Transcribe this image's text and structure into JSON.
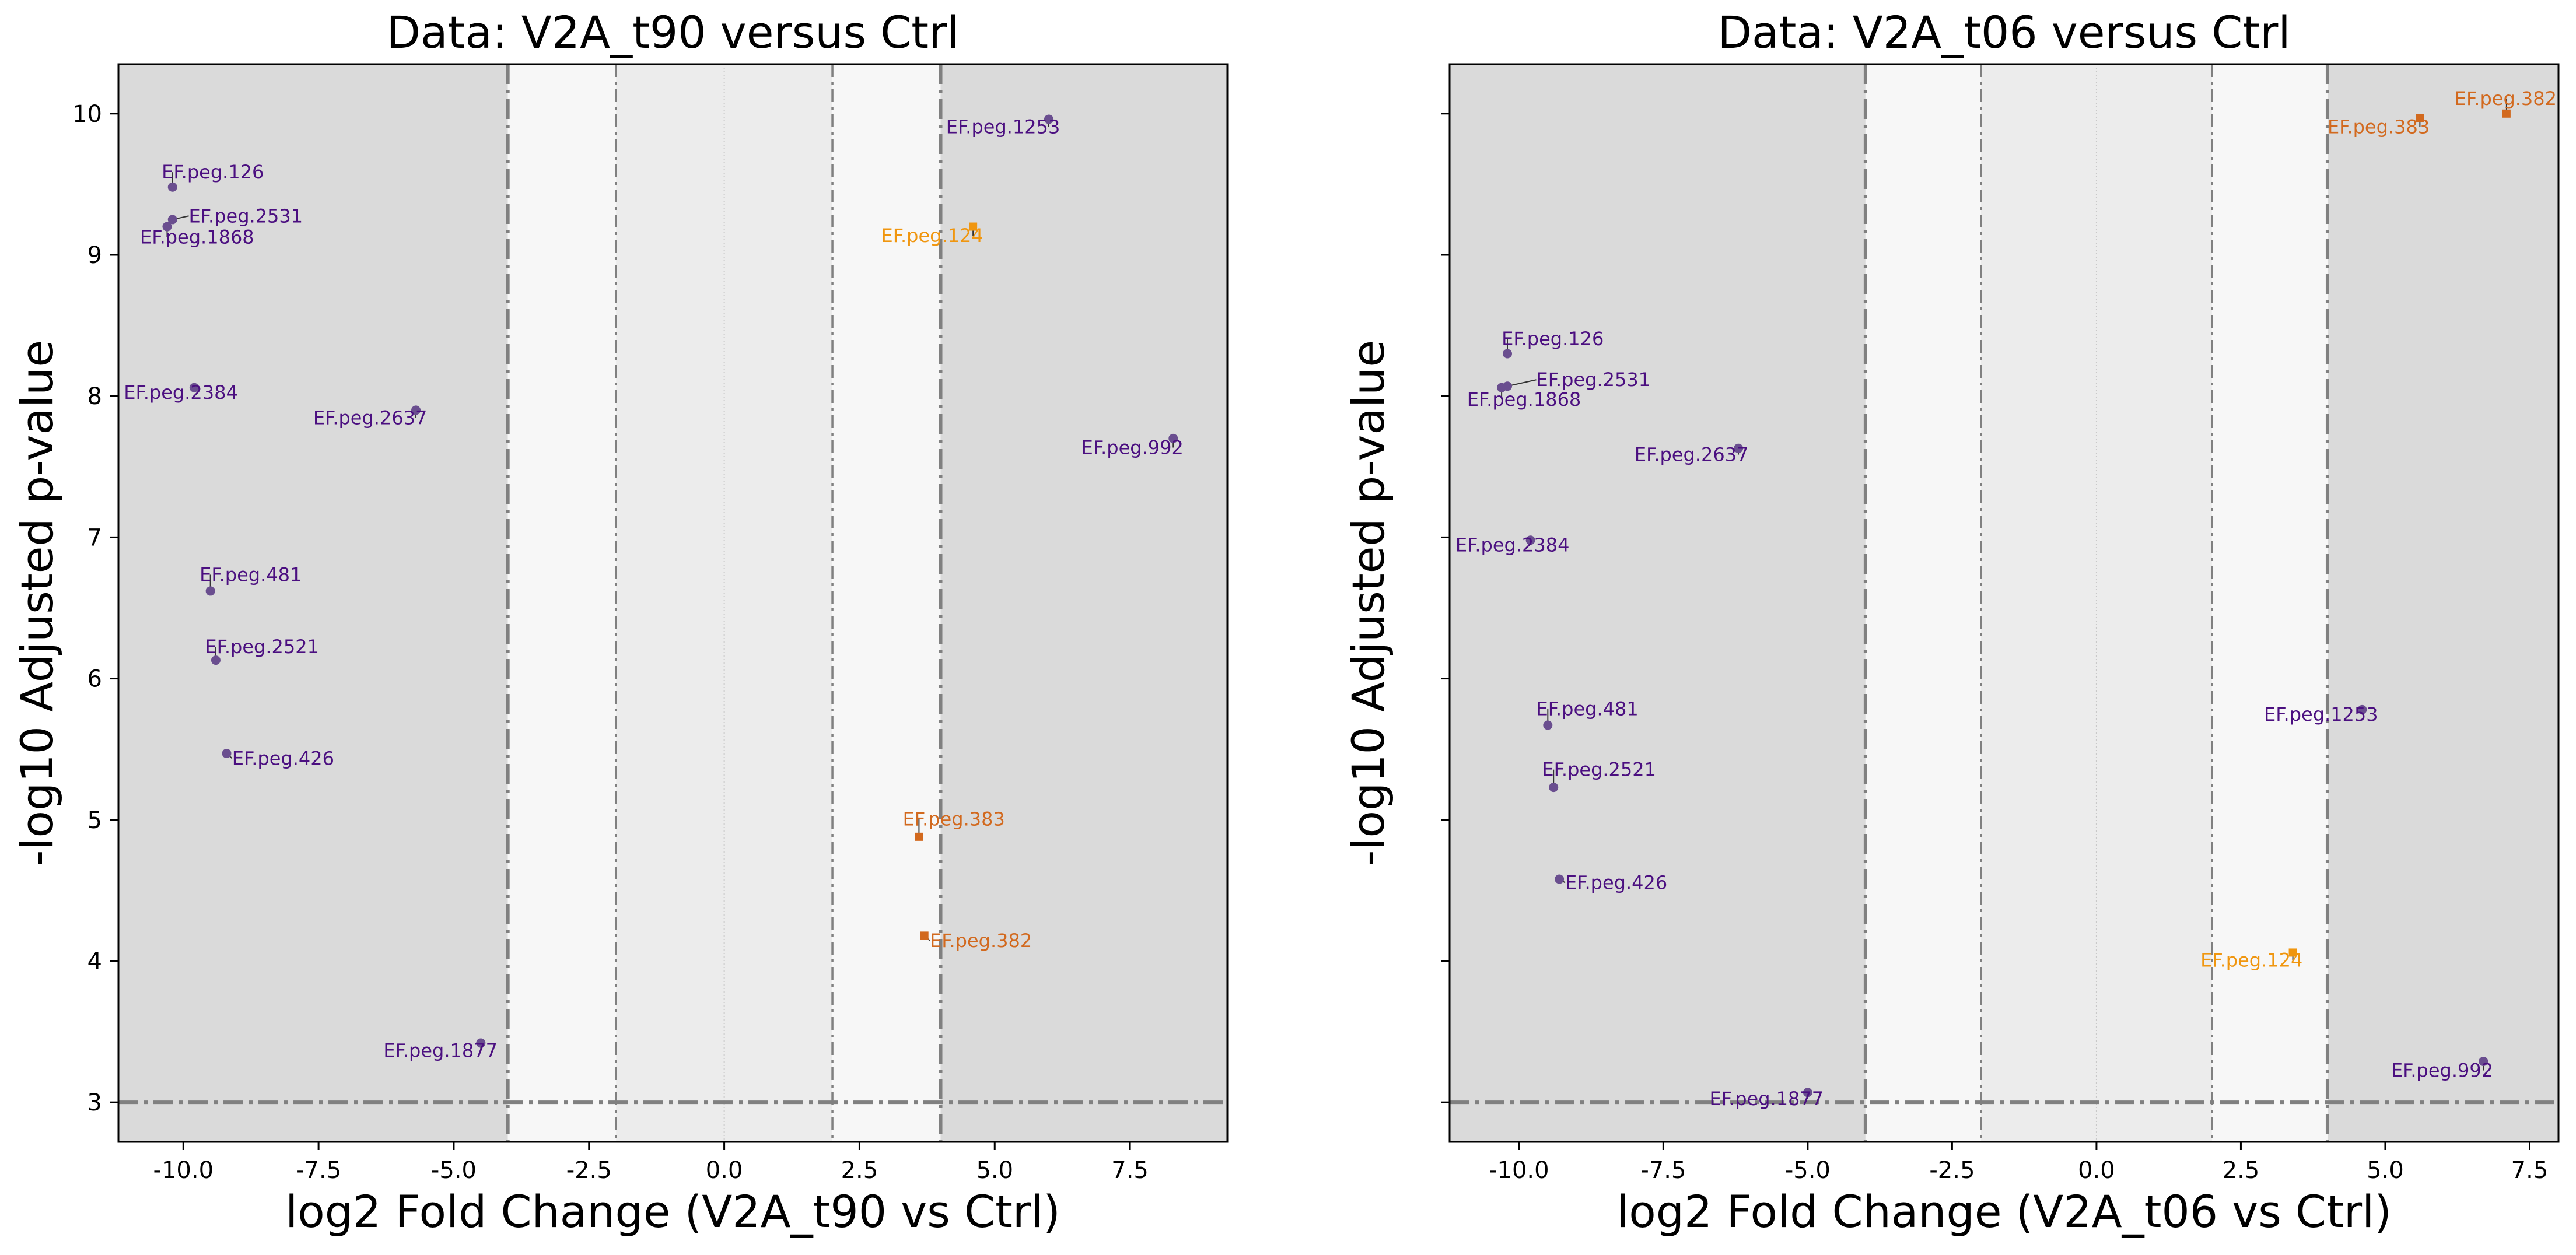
{
  "colors": {
    "purple": "#4b0f80",
    "purple_marker": "#6a4e8f",
    "orange_dark": "#d2691e",
    "orange_light": "#f0960f",
    "band_outer": "#dadada",
    "band_mid": "#f7f7f7",
    "band_inner": "#ececec",
    "line_gray": "#808080"
  },
  "chart_data": [
    {
      "type": "scatter",
      "title": "Data: V2A_t90 versus Ctrl",
      "xlabel": "log2 Fold Change (V2A_t90 vs Ctrl)",
      "ylabel": "-log10 Adjusted p-value",
      "xlim": [
        -11.2,
        9.3
      ],
      "ylim": [
        2.72,
        10.35
      ],
      "xticks": [
        "-10.0",
        "-7.5",
        "-5.0",
        "-2.5",
        "0.0",
        "2.5",
        "5.0",
        "7.5"
      ],
      "yticks": [
        "3",
        "4",
        "5",
        "6",
        "7",
        "8",
        "9",
        "10"
      ],
      "show_ytick_labels": true,
      "vlines": [
        -4,
        -2,
        2,
        4
      ],
      "hline": 3,
      "grid": false,
      "points": [
        {
          "label": "EF.peg.126",
          "x": -10.2,
          "y": 9.48,
          "group": "down",
          "marker": "circle",
          "lx": -10.4,
          "ly": 9.54
        },
        {
          "label": "EF.peg.2531",
          "x": -10.2,
          "y": 9.25,
          "group": "down",
          "marker": "circle",
          "lx": -9.9,
          "ly": 9.23
        },
        {
          "label": "EF.peg.1868",
          "x": -10.3,
          "y": 9.2,
          "group": "down",
          "marker": "circle",
          "lx": -10.8,
          "ly": 9.08
        },
        {
          "label": "EF.peg.2384",
          "x": -9.8,
          "y": 8.06,
          "group": "down",
          "marker": "circle",
          "lx": -11.1,
          "ly": 7.98
        },
        {
          "label": "EF.peg.2637",
          "x": -5.7,
          "y": 7.9,
          "group": "down",
          "marker": "circle",
          "lx": -7.6,
          "ly": 7.8
        },
        {
          "label": "EF.peg.481",
          "x": -9.5,
          "y": 6.62,
          "group": "down",
          "marker": "circle",
          "lx": -9.7,
          "ly": 6.69
        },
        {
          "label": "EF.peg.2521",
          "x": -9.4,
          "y": 6.13,
          "group": "down",
          "marker": "circle",
          "lx": -9.6,
          "ly": 6.18
        },
        {
          "label": "EF.peg.426",
          "x": -9.2,
          "y": 5.47,
          "group": "down",
          "marker": "circle",
          "lx": -9.1,
          "ly": 5.39
        },
        {
          "label": "EF.peg.1877",
          "x": -4.5,
          "y": 3.42,
          "group": "down",
          "marker": "circle",
          "lx": -6.3,
          "ly": 3.32
        },
        {
          "label": "EF.peg.1253",
          "x": 6.0,
          "y": 9.96,
          "group": "down",
          "marker": "circle",
          "lx": 4.1,
          "ly": 9.86
        },
        {
          "label": "EF.peg.992",
          "x": 8.3,
          "y": 7.7,
          "group": "down",
          "marker": "circle",
          "lx": 6.6,
          "ly": 7.59
        },
        {
          "label": "EF.peg.124",
          "x": 4.6,
          "y": 9.2,
          "group": "up_light",
          "marker": "square",
          "lx": 2.9,
          "ly": 9.09
        },
        {
          "label": "EF.peg.383",
          "x": 3.6,
          "y": 4.88,
          "group": "up_dark",
          "marker": "square",
          "lx": 3.3,
          "ly": 4.96
        },
        {
          "label": "EF.peg.382",
          "x": 3.7,
          "y": 4.18,
          "group": "up_dark",
          "marker": "square",
          "lx": 3.8,
          "ly": 4.1
        }
      ]
    },
    {
      "type": "scatter",
      "title": "Data: V2A_t06 versus Ctrl",
      "xlabel": "log2 Fold Change (V2A_t06 vs Ctrl)",
      "ylabel": "-log10 Adjusted p-value",
      "xlim": [
        -11.2,
        8.0
      ],
      "ylim": [
        2.72,
        10.35
      ],
      "xticks": [
        "-10.0",
        "-7.5",
        "-5.0",
        "-2.5",
        "0.0",
        "2.5",
        "5.0",
        "7.5"
      ],
      "yticks": [
        "3",
        "4",
        "5",
        "6",
        "7",
        "8",
        "9",
        "10"
      ],
      "show_ytick_labels": false,
      "vlines": [
        -4,
        -2,
        2,
        4
      ],
      "hline": 3,
      "grid": false,
      "points": [
        {
          "label": "EF.peg.382",
          "x": 7.1,
          "y": 10.0,
          "group": "up_dark",
          "marker": "square",
          "lx": 6.2,
          "ly": 10.06
        },
        {
          "label": "EF.peg.383",
          "x": 5.6,
          "y": 9.97,
          "group": "up_dark",
          "marker": "square",
          "lx": 4.0,
          "ly": 9.86
        },
        {
          "label": "EF.peg.126",
          "x": -10.2,
          "y": 8.3,
          "group": "down",
          "marker": "circle",
          "lx": -10.3,
          "ly": 8.36
        },
        {
          "label": "EF.peg.2531",
          "x": -10.2,
          "y": 8.07,
          "group": "down",
          "marker": "circle",
          "lx": -9.7,
          "ly": 8.07
        },
        {
          "label": "EF.peg.1868",
          "x": -10.3,
          "y": 8.06,
          "group": "down",
          "marker": "circle",
          "lx": -10.9,
          "ly": 7.93
        },
        {
          "label": "EF.peg.2637",
          "x": -6.2,
          "y": 7.63,
          "group": "down",
          "marker": "circle",
          "lx": -8.0,
          "ly": 7.54
        },
        {
          "label": "EF.peg.2384",
          "x": -9.8,
          "y": 6.98,
          "group": "down",
          "marker": "circle",
          "lx": -11.1,
          "ly": 6.9
        },
        {
          "label": "EF.peg.481",
          "x": -9.5,
          "y": 5.67,
          "group": "down",
          "marker": "circle",
          "lx": -9.7,
          "ly": 5.74
        },
        {
          "label": "EF.peg.2521",
          "x": -9.4,
          "y": 5.23,
          "group": "down",
          "marker": "circle",
          "lx": -9.6,
          "ly": 5.31
        },
        {
          "label": "EF.peg.426",
          "x": -9.3,
          "y": 4.58,
          "group": "down",
          "marker": "circle",
          "lx": -9.2,
          "ly": 4.51
        },
        {
          "label": "EF.peg.1253",
          "x": 4.6,
          "y": 5.78,
          "group": "down",
          "marker": "circle",
          "lx": 2.9,
          "ly": 5.7
        },
        {
          "label": "EF.peg.124",
          "x": 3.4,
          "y": 4.06,
          "group": "up_light",
          "marker": "square",
          "lx": 1.8,
          "ly": 3.96
        },
        {
          "label": "EF.peg.992",
          "x": 6.7,
          "y": 3.29,
          "group": "down",
          "marker": "circle",
          "lx": 5.1,
          "ly": 3.18
        },
        {
          "label": "EF.peg.1877",
          "x": -5.0,
          "y": 3.07,
          "group": "down",
          "marker": "circle",
          "lx": -6.7,
          "ly": 2.98
        }
      ]
    }
  ]
}
